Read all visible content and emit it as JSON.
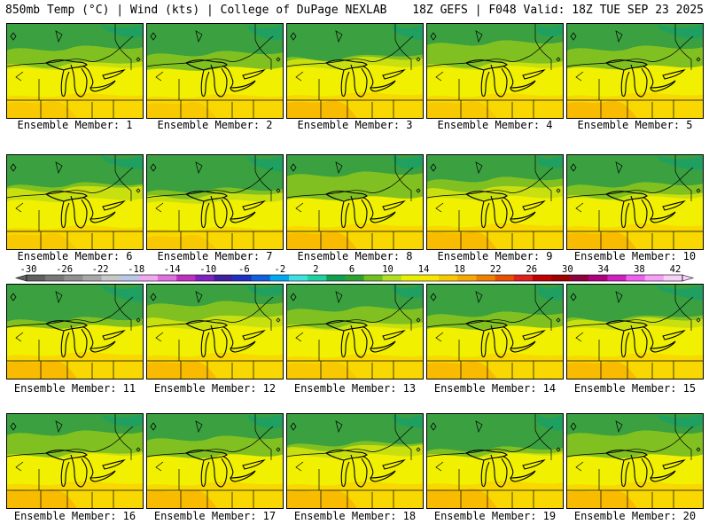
{
  "header": {
    "left": "850mb Temp (°C) | Wind (kts) | College of DuPage NEXLAB",
    "right": "18Z GEFS | F048 Valid: 18Z TUE SEP 23 2025"
  },
  "panels": [
    {
      "label": "Ensemble Member: 1",
      "member": 1,
      "warmth": 0.55
    },
    {
      "label": "Ensemble Member: 2",
      "member": 2,
      "warmth": 0.5
    },
    {
      "label": "Ensemble Member: 3",
      "member": 3,
      "warmth": 0.6
    },
    {
      "label": "Ensemble Member: 4",
      "member": 4,
      "warmth": 0.55
    },
    {
      "label": "Ensemble Member: 5",
      "member": 5,
      "warmth": 0.58
    },
    {
      "label": "Ensemble Member: 6",
      "member": 6,
      "warmth": 0.5
    },
    {
      "label": "Ensemble Member: 7",
      "member": 7,
      "warmth": 0.4
    },
    {
      "label": "Ensemble Member: 8",
      "member": 8,
      "warmth": 0.6
    },
    {
      "label": "Ensemble Member: 9",
      "member": 9,
      "warmth": 0.62
    },
    {
      "label": "Ensemble Member: 10",
      "member": 10,
      "warmth": 0.6
    },
    {
      "label": "Ensemble Member: 11",
      "member": 11,
      "warmth": 0.65
    },
    {
      "label": "Ensemble Member: 12",
      "member": 12,
      "warmth": 0.62
    },
    {
      "label": "Ensemble Member: 13",
      "member": 13,
      "warmth": 0.55
    },
    {
      "label": "Ensemble Member: 14",
      "member": 14,
      "warmth": 0.6
    },
    {
      "label": "Ensemble Member: 15",
      "member": 15,
      "warmth": 0.6
    },
    {
      "label": "Ensemble Member: 16",
      "member": 16,
      "warmth": 0.68
    },
    {
      "label": "Ensemble Member: 17",
      "member": 17,
      "warmth": 0.65
    },
    {
      "label": "Ensemble Member: 18",
      "member": 18,
      "warmth": 0.66
    },
    {
      "label": "Ensemble Member: 19",
      "member": 19,
      "warmth": 0.7
    },
    {
      "label": "Ensemble Member: 20",
      "member": 20,
      "warmth": 0.65
    }
  ],
  "colorbar": {
    "labels": [
      "-30",
      "-26",
      "-22",
      "-18",
      "-14",
      "-10",
      "-6",
      "-2",
      "2",
      "6",
      "10",
      "14",
      "18",
      "22",
      "26",
      "30",
      "34",
      "38",
      "42"
    ],
    "colors": [
      "#606060",
      "#787878",
      "#909090",
      "#a8a8a8",
      "#c8c8c8",
      "#b8c8e8",
      "#f0a8f0",
      "#e070e0",
      "#c030c0",
      "#8020c0",
      "#4020a0",
      "#2030c0",
      "#1060e0",
      "#00a8f0",
      "#40e0e0",
      "#20d0a0",
      "#10a050",
      "#30a030",
      "#70c020",
      "#b0e020",
      "#e8f000",
      "#f8e800",
      "#f8c800",
      "#f8a800",
      "#f08000",
      "#e85000",
      "#e02020",
      "#c00000",
      "#a00000",
      "#900040",
      "#b00080",
      "#d020c0",
      "#f060f0",
      "#f8a0f8",
      "#f8d0f8"
    ]
  }
}
